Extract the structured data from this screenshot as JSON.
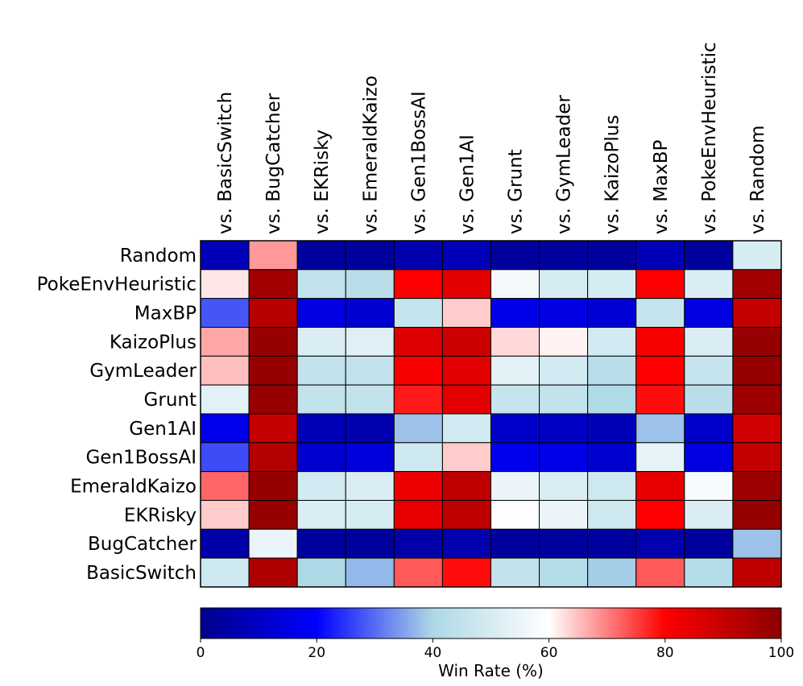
{
  "chart_data": {
    "type": "heatmap",
    "x_labels": [
      "vs. BasicSwitch",
      "vs. BugCatcher",
      "vs. EKRisky",
      "vs. EmeraldKaizo",
      "vs. Gen1BossAI",
      "vs. Gen1AI",
      "vs. Grunt",
      "vs. GymLeader",
      "vs. KaizoPlus",
      "vs. MaxBP",
      "vs. PokeEnvHeuristic",
      "vs. Random"
    ],
    "y_labels": [
      "Random",
      "PokeEnvHeuristic",
      "MaxBP",
      "KaizoPlus",
      "GymLeader",
      "Grunt",
      "Gen1AI",
      "Gen1BossAI",
      "EmeraldKaizo",
      "EKRisky",
      "BugCatcher",
      "BasicSwitch"
    ],
    "values": [
      [
        8,
        68,
        3,
        3,
        6,
        8,
        3,
        3,
        3,
        8,
        3,
        50
      ],
      [
        62,
        96,
        45,
        43,
        80,
        85,
        57,
        50,
        50,
        80,
        51,
        96
      ],
      [
        28,
        92,
        15,
        12,
        46,
        64,
        16,
        15,
        13,
        46,
        15,
        90
      ],
      [
        67,
        98,
        51,
        52,
        86,
        89,
        63,
        61,
        49,
        81,
        51,
        98
      ],
      [
        65,
        98,
        45,
        45,
        81,
        85,
        53,
        49,
        43,
        80,
        46,
        98
      ],
      [
        53,
        98,
        45,
        45,
        78,
        85,
        46,
        45,
        41,
        79,
        43,
        97
      ],
      [
        17,
        90,
        8,
        6,
        38,
        49,
        11,
        10,
        8,
        38,
        11,
        88
      ],
      [
        27,
        93,
        12,
        14,
        48,
        64,
        17,
        16,
        12,
        54,
        15,
        90
      ],
      [
        72,
        98,
        49,
        51,
        83,
        91,
        55,
        51,
        48,
        84,
        58,
        97
      ],
      [
        64,
        98,
        51,
        50,
        84,
        91,
        59,
        55,
        48,
        80,
        51,
        98
      ],
      [
        5,
        55,
        3,
        3,
        5,
        6,
        3,
        3,
        3,
        6,
        3,
        38
      ],
      [
        48,
        94,
        40,
        37,
        73,
        79,
        45,
        42,
        39,
        73,
        42,
        91
      ]
    ],
    "colormap": [
      "#00008b",
      "#0000ff",
      "#add8e6",
      "#ffffff",
      "#ff0000",
      "#8b0000"
    ],
    "vmin": 0,
    "vmax": 100,
    "colorbar_ticks": [
      "0",
      "20",
      "40",
      "60",
      "80",
      "100"
    ],
    "colorbar_label": "Win Rate (%)"
  }
}
